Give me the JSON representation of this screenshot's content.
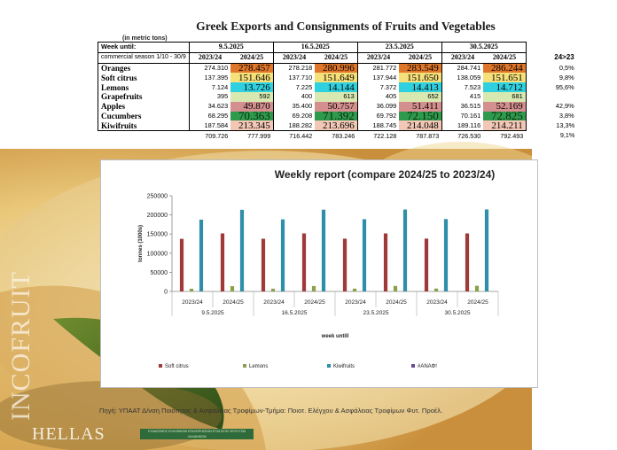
{
  "page": {
    "title": "Greek Exports and Consignments of Fruits and Vegetables",
    "unit_note": "(in metric tons)",
    "source": "Πηγή: ΥΠΑΑΤ Δ/νση Ποιότητας & Ασφάλειας Τροφίμων-Τμήμα: Ποιοτ. Ελέγχου & Ασφάλειας Τροφίμων Φυτ. Προέλ.",
    "brand_vertical": "INCOFRUIT",
    "brand_bottom": "HELLAS",
    "badge_text": "ΣΥΝΔΕΣΜΟΣ ΕΛΛΗΝΙΚΩΝ ΕΠΙΧΕΙΡΗΣΕΩΝ ΕΞΑΓΩΓΗΣ ΦΡΟΥΤΩΝ ΛΑΧΑΝΙΚΩΝ"
  },
  "table": {
    "week_label": "Week until:",
    "season_label": "commercial season 1/10 - 30/9",
    "change_label": "24>23",
    "weeks": [
      "9.5.2025",
      "16.5.2025",
      "23.5.2025",
      "30.5.2025"
    ],
    "seasons": [
      "2023/24",
      "2024/25"
    ],
    "rows": [
      {
        "product": "Orange s",
        "label": "Oranges",
        "color": "#e0762a",
        "values": [
          "274.310",
          "278.457",
          "278.218",
          "280.996",
          "281.772",
          "283.549",
          "284.741",
          "286.244"
        ],
        "change": "0,5%"
      },
      {
        "product": "soft",
        "label": "Soft citrus",
        "color": "#f6e07a",
        "values": [
          "137.395",
          "151.646",
          "137.710",
          "151.649",
          "137.944",
          "151.650",
          "138.059",
          "151.651"
        ],
        "change": "9,8%"
      },
      {
        "product": "lemons",
        "label": "Lemons",
        "color": "#2fd1e0",
        "values": [
          "7.124",
          "13.726",
          "7.225",
          "14.144",
          "7.372",
          "14.413",
          "7.523",
          "14.712"
        ],
        "change": "95,6%"
      },
      {
        "product": "grapefruits",
        "label": "Grapefruits",
        "color": "#d7e9b0",
        "values": [
          "395",
          "592",
          "400",
          "613",
          "405",
          "652",
          "415",
          "681"
        ],
        "change": ""
      },
      {
        "product": "apples",
        "label": "Apples",
        "color": "#d48f8f",
        "values": [
          "34.623",
          "49.870",
          "35.400",
          "50.757",
          "36.099",
          "51.411",
          "36.515",
          "52.169"
        ],
        "change": "42,9%"
      },
      {
        "product": "cucumbers",
        "label": "Cucumbers",
        "color": "#2e9a4c",
        "values": [
          "68.295",
          "70.363",
          "69.208",
          "71.392",
          "69.792",
          "72.150",
          "70.161",
          "72.825"
        ],
        "change": "3,8%"
      },
      {
        "product": "kiwi",
        "label": "Kiwifruits",
        "color": "#f2c7b5",
        "values": [
          "187.584",
          "213.345",
          "188.282",
          "213.696",
          "188.745",
          "214.048",
          "189.116",
          "214.211"
        ],
        "change": "13,3%"
      }
    ],
    "totals": [
      "709.726",
      "777.999",
      "716.442",
      "783.246",
      "722.128",
      "787.873",
      "726.530",
      "792.493"
    ],
    "totals_change": "9,1%"
  },
  "chart_data": {
    "type": "bar",
    "title": "Weekly report (compare 2024/25 to 2023/24)",
    "xlabel": "week untill",
    "ylabel": "tonnes (1000s)",
    "ylim": [
      0,
      250000
    ],
    "yticks": [
      "0",
      "50000",
      "100000",
      "150000",
      "200000",
      "250000"
    ],
    "groups": [
      "9.5.2025",
      "16.5.2025",
      "23.5.2025",
      "30.5.2025"
    ],
    "categories": [
      "2023/24",
      "2024/25",
      "2023/24",
      "2024/25",
      "2023/24",
      "2024/25",
      "2023/24",
      "2024/25"
    ],
    "series": [
      {
        "name": "Soft citrus",
        "color": "#a03a3a",
        "values": [
          137395,
          151646,
          137710,
          151649,
          137944,
          151650,
          138059,
          151651
        ]
      },
      {
        "name": "Lemons",
        "color": "#8aa04a",
        "values": [
          7124,
          13726,
          7225,
          14144,
          7372,
          14413,
          7523,
          14712
        ]
      },
      {
        "name": "Kiwifruits",
        "color": "#2f8ea8",
        "values": [
          187584,
          213345,
          188282,
          213696,
          188745,
          214048,
          189116,
          214211
        ]
      },
      {
        "name": "#ΑΝΑΦ!",
        "color": "#6a4c93",
        "values": [
          0,
          0,
          0,
          0,
          0,
          0,
          0,
          0
        ]
      }
    ],
    "grid": false,
    "legend": "bottom"
  }
}
